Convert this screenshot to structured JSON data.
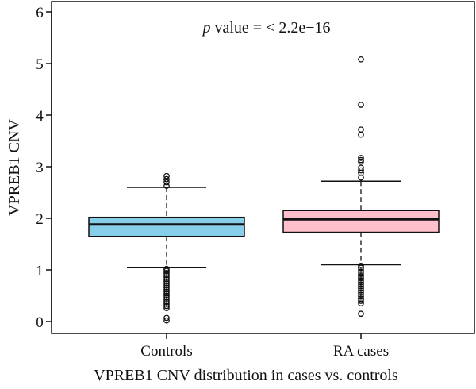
{
  "chart_data": {
    "type": "boxplot",
    "xlabel": "VPREB1 CNV distribution in cases vs. controls",
    "ylabel": "VPREB1 CNV",
    "ylim": [
      0,
      6
    ],
    "yticks": [
      "0",
      "1",
      "2",
      "3",
      "4",
      "5",
      "6"
    ],
    "grid": false,
    "annotation": {
      "italic": "p",
      "text": " value = < 2.2e−16"
    },
    "categories": [
      "Controls",
      "RA cases"
    ],
    "boxes": [
      {
        "category": "Controls",
        "color": "#87CEEB",
        "lower_whisker": 1.05,
        "q1": 1.65,
        "median": 1.88,
        "q3": 2.02,
        "upper_whisker": 2.6,
        "outliers": [
          2.82,
          2.76,
          2.7,
          2.63,
          1.02,
          0.98,
          0.94,
          0.9,
          0.86,
          0.82,
          0.78,
          0.74,
          0.7,
          0.66,
          0.62,
          0.58,
          0.54,
          0.5,
          0.46,
          0.42,
          0.38,
          0.34,
          0.3,
          0.26,
          0.07,
          0.02
        ]
      },
      {
        "category": "RA cases",
        "color": "#FFC0CB",
        "lower_whisker": 1.1,
        "q1": 1.73,
        "median": 1.98,
        "q3": 2.15,
        "upper_whisker": 2.72,
        "outliers": [
          5.08,
          4.2,
          3.72,
          3.62,
          3.17,
          3.13,
          3.1,
          2.98,
          2.93,
          2.88,
          2.79,
          1.08,
          1.04,
          1.0,
          0.96,
          0.92,
          0.88,
          0.84,
          0.8,
          0.76,
          0.72,
          0.68,
          0.64,
          0.6,
          0.56,
          0.52,
          0.48,
          0.44,
          0.4,
          0.35,
          0.15
        ]
      }
    ]
  }
}
